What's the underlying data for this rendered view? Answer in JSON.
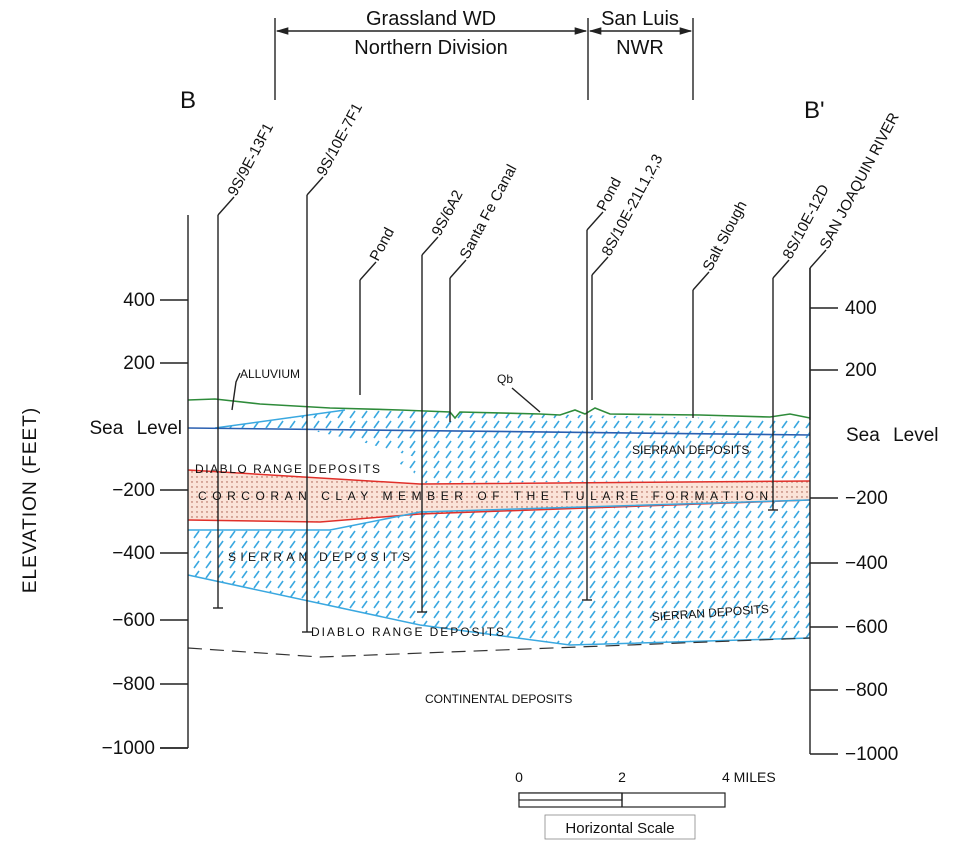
{
  "regions": [
    {
      "lines": [
        "Grassland WD",
        "Northern Division"
      ]
    },
    {
      "lines": [
        "San Luis",
        "NWR"
      ]
    }
  ],
  "section_ends": [
    "B",
    "B'"
  ],
  "wells": [
    "9S/9E-13F1",
    "9S/10E-7F1",
    "Pond",
    "9S/6A2",
    "Santa Fe Canal",
    "Pond",
    "8S/10E-21L1,2,3",
    "Salt Slough",
    "8S/10E-12D",
    "SAN JOAQUIN RIVER"
  ],
  "axis": {
    "label": "ELEVATION (FEET)",
    "left_ticks": [
      "400",
      "200",
      "Sea Level",
      "−200",
      "−400",
      "−600",
      "−800",
      "−1000"
    ],
    "right_ticks": [
      "400",
      "200",
      "Sea Level",
      "−200",
      "−400",
      "−600",
      "−800",
      "−1000"
    ]
  },
  "units": [
    "ALLUVIUM",
    "Qb",
    "DIABLO RANGE DEPOSITS",
    "SIERRAN DEPOSITS",
    "CORCORAN CLAY MEMBER OF THE TULARE FORMATION",
    "SIERRAN DEPOSITS",
    "SIERRAN DEPOSITS",
    "DIABLO RANGE DEPOSITS",
    "CONTINENTAL DEPOSITS"
  ],
  "scale": {
    "ticks": [
      "0",
      "2"
    ],
    "end": "4 MILES",
    "caption": "Horizontal Scale"
  }
}
